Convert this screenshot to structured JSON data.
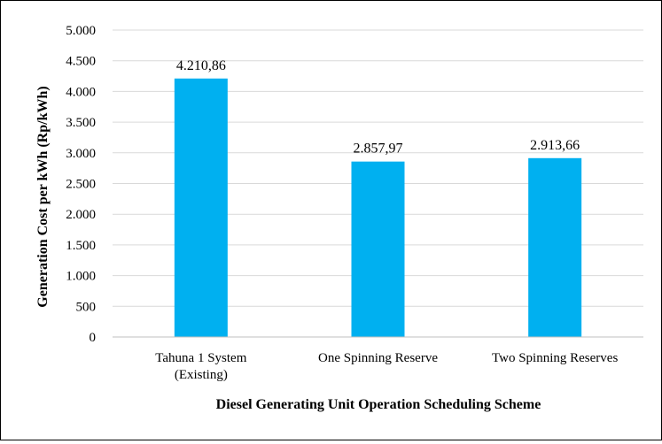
{
  "chart_data": {
    "type": "bar",
    "title": "",
    "xlabel": "Diesel Generating Unit Operation Scheduling Scheme",
    "ylabel": "Generation Cost per kWh (Rp/kWh)",
    "ylim": [
      0,
      5000
    ],
    "yticks": [
      0,
      500,
      1000,
      1500,
      2000,
      2500,
      3000,
      3500,
      4000,
      4500,
      5000
    ],
    "ytick_labels": [
      "0",
      "500",
      "1.000",
      "1.500",
      "2.000",
      "2.500",
      "3.000",
      "3.500",
      "4.000",
      "4.500",
      "5.000"
    ],
    "categories": [
      [
        "Tahuna 1 System",
        "(Existing)"
      ],
      [
        "One Spinning Reserve"
      ],
      [
        "Two Spinning Reserves"
      ]
    ],
    "values": [
      4210.86,
      2857.97,
      2913.66
    ],
    "data_labels": [
      "4.210,86",
      "2.857,97",
      "2.913,66"
    ],
    "bar_color": "#00B0F0",
    "grid": true,
    "grid_color": "#d9d9d9",
    "legend": false
  }
}
